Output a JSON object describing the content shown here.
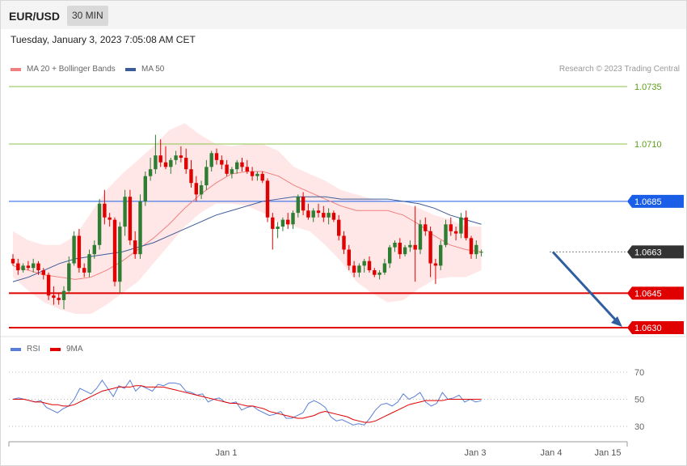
{
  "header": {
    "pair": "EUR/USD",
    "timeframe": "30 MIN"
  },
  "datetime": "Tuesday, January 3, 2023 7:05:08 AM CET",
  "legend": {
    "ma20": "MA 20 + Bollinger Bands",
    "ma50": "MA 50",
    "rsi": "RSI",
    "ma9": "9MA"
  },
  "credit": "Research © 2023 Trading Central",
  "colors": {
    "up": "#2e7d32",
    "down": "#e00000",
    "band": "#ffe3e3",
    "ma20": "#f08080",
    "ma50": "#3d5a99",
    "rsi": "#5b7fd6",
    "rsi_ma": "#e00000",
    "resistance": "#8bc34a",
    "pivot": "#1a5ee8",
    "support": "#e00000",
    "last": "#333333"
  },
  "levels": [
    {
      "label": "1.0735",
      "value": 1.0735,
      "kind": "resistance"
    },
    {
      "label": "1.0710",
      "value": 1.071,
      "kind": "resistance"
    },
    {
      "label": "1.0685",
      "value": 1.0685,
      "kind": "pivot"
    },
    {
      "label": "1.0663",
      "value": 1.0663,
      "kind": "last"
    },
    {
      "label": "1.0645",
      "value": 1.0645,
      "kind": "support"
    },
    {
      "label": "1.0630",
      "value": 1.063,
      "kind": "support"
    }
  ],
  "rsi_levels": [
    "70",
    "50",
    "30"
  ],
  "xaxis": [
    "Jan 1",
    "Jan 3",
    "Jan 4",
    "Jan 15"
  ],
  "chart_data": {
    "type": "candlestick",
    "interval": "30 MIN",
    "ylim": [
      1.0627,
      1.074
    ],
    "candles": [
      [
        1.066,
        1.0662,
        1.0657,
        1.0658
      ],
      [
        1.0658,
        1.066,
        1.0653,
        1.0655
      ],
      [
        1.0655,
        1.0658,
        1.0654,
        1.0657
      ],
      [
        1.0657,
        1.0659,
        1.0655,
        1.0656
      ],
      [
        1.0656,
        1.066,
        1.0654,
        1.0658
      ],
      [
        1.0658,
        1.0659,
        1.0653,
        1.0655
      ],
      [
        1.0655,
        1.0656,
        1.0651,
        1.0653
      ],
      [
        1.0653,
        1.0654,
        1.0642,
        1.0644
      ],
      [
        1.0644,
        1.0648,
        1.064,
        1.0643
      ],
      [
        1.0643,
        1.0645,
        1.064,
        1.0642
      ],
      [
        1.0642,
        1.0648,
        1.0638,
        1.0646
      ],
      [
        1.0646,
        1.0661,
        1.0645,
        1.0658
      ],
      [
        1.0658,
        1.0672,
        1.0657,
        1.067
      ],
      [
        1.067,
        1.0673,
        1.0654,
        1.0656
      ],
      [
        1.0656,
        1.0658,
        1.0652,
        1.0654
      ],
      [
        1.0654,
        1.0664,
        1.0652,
        1.0662
      ],
      [
        1.0662,
        1.0668,
        1.066,
        1.0666
      ],
      [
        1.0666,
        1.0686,
        1.0664,
        1.0684
      ],
      [
        1.0684,
        1.069,
        1.0675,
        1.0678
      ],
      [
        1.0678,
        1.068,
        1.0674,
        1.0677
      ],
      [
        1.0677,
        1.0678,
        1.0648,
        1.065
      ],
      [
        1.065,
        1.0676,
        1.0645,
        1.0674
      ],
      [
        1.0674,
        1.069,
        1.067,
        1.0687
      ],
      [
        1.0687,
        1.069,
        1.0666,
        1.0668
      ],
      [
        1.0668,
        1.0672,
        1.066,
        1.0662
      ],
      [
        1.0662,
        1.0688,
        1.066,
        1.0685
      ],
      [
        1.0685,
        1.0698,
        1.0683,
        1.0696
      ],
      [
        1.0696,
        1.0704,
        1.0694,
        1.0699
      ],
      [
        1.0699,
        1.0714,
        1.0697,
        1.0705
      ],
      [
        1.0705,
        1.0712,
        1.07,
        1.0702
      ],
      [
        1.0702,
        1.0709,
        1.0699,
        1.07
      ],
      [
        1.07,
        1.0704,
        1.0697,
        1.0703
      ],
      [
        1.0703,
        1.0707,
        1.0701,
        1.0705
      ],
      [
        1.0705,
        1.0709,
        1.0702,
        1.0704
      ],
      [
        1.0704,
        1.0708,
        1.0697,
        1.0699
      ],
      [
        1.0699,
        1.0703,
        1.0691,
        1.0693
      ],
      [
        1.0693,
        1.0696,
        1.0685,
        1.0688
      ],
      [
        1.0688,
        1.0694,
        1.0686,
        1.0692
      ],
      [
        1.0692,
        1.0703,
        1.069,
        1.07
      ],
      [
        1.07,
        1.0707,
        1.0698,
        1.0706
      ],
      [
        1.0706,
        1.0708,
        1.0701,
        1.0703
      ],
      [
        1.0703,
        1.0705,
        1.0699,
        1.0701
      ],
      [
        1.0701,
        1.0703,
        1.0696,
        1.0697
      ],
      [
        1.0697,
        1.07,
        1.0695,
        1.0699
      ],
      [
        1.0699,
        1.0703,
        1.0697,
        1.0702
      ],
      [
        1.0702,
        1.0704,
        1.0698,
        1.07
      ],
      [
        1.07,
        1.0703,
        1.0697,
        1.0698
      ],
      [
        1.0698,
        1.07,
        1.0694,
        1.0696
      ],
      [
        1.0696,
        1.0698,
        1.0694,
        1.0697
      ],
      [
        1.0697,
        1.0698,
        1.0693,
        1.0694
      ],
      [
        1.0694,
        1.0695,
        1.0676,
        1.0678
      ],
      [
        1.0678,
        1.068,
        1.0664,
        1.0673
      ],
      [
        1.0673,
        1.0676,
        1.0669,
        1.0674
      ],
      [
        1.0674,
        1.0678,
        1.0672,
        1.0677
      ],
      [
        1.0677,
        1.068,
        1.0673,
        1.0675
      ],
      [
        1.0675,
        1.0681,
        1.0673,
        1.068
      ],
      [
        1.068,
        1.0688,
        1.0678,
        1.0687
      ],
      [
        1.0687,
        1.0689,
        1.0679,
        1.0681
      ],
      [
        1.0681,
        1.0684,
        1.0677,
        1.0678
      ],
      [
        1.0678,
        1.0682,
        1.0676,
        1.0681
      ],
      [
        1.0681,
        1.0684,
        1.0678,
        1.068
      ],
      [
        1.068,
        1.0683,
        1.0676,
        1.0678
      ],
      [
        1.0678,
        1.0682,
        1.0675,
        1.068
      ],
      [
        1.068,
        1.0681,
        1.0676,
        1.0677
      ],
      [
        1.0677,
        1.0679,
        1.0668,
        1.067
      ],
      [
        1.067,
        1.0672,
        1.0662,
        1.0664
      ],
      [
        1.0664,
        1.0666,
        1.0655,
        1.0657
      ],
      [
        1.0657,
        1.0659,
        1.0652,
        1.0654
      ],
      [
        1.0654,
        1.0658,
        1.0652,
        1.0657
      ],
      [
        1.0657,
        1.066,
        1.0654,
        1.0659
      ],
      [
        1.0659,
        1.0661,
        1.0654,
        1.0655
      ],
      [
        1.0655,
        1.0656,
        1.0652,
        1.0653
      ],
      [
        1.0653,
        1.0655,
        1.0651,
        1.0654
      ],
      [
        1.0654,
        1.066,
        1.0653,
        1.0658
      ],
      [
        1.0658,
        1.0666,
        1.0656,
        1.0665
      ],
      [
        1.0665,
        1.0668,
        1.0663,
        1.0667
      ],
      [
        1.0667,
        1.0669,
        1.066,
        1.0662
      ],
      [
        1.0662,
        1.0666,
        1.0661,
        1.0665
      ],
      [
        1.0665,
        1.0668,
        1.0663,
        1.0666
      ],
      [
        1.0666,
        1.0683,
        1.065,
        1.0664
      ],
      [
        1.0664,
        1.0677,
        1.0662,
        1.0675
      ],
      [
        1.0675,
        1.0678,
        1.067,
        1.0672
      ],
      [
        1.0672,
        1.0674,
        1.0652,
        1.0658
      ],
      [
        1.0658,
        1.066,
        1.0649,
        1.0657
      ],
      [
        1.0657,
        1.0668,
        1.0655,
        1.0666
      ],
      [
        1.0666,
        1.0677,
        1.0665,
        1.0675
      ],
      [
        1.0675,
        1.0678,
        1.067,
        1.0672
      ],
      [
        1.0672,
        1.0674,
        1.0668,
        1.0671
      ],
      [
        1.0671,
        1.068,
        1.0669,
        1.0678
      ],
      [
        1.0678,
        1.0681,
        1.0668,
        1.0669
      ],
      [
        1.0669,
        1.067,
        1.066,
        1.0662
      ],
      [
        1.0662,
        1.0668,
        1.066,
        1.0666
      ],
      [
        1.0663,
        1.0664,
        1.0661,
        1.0663
      ]
    ],
    "ma20": [
      1.0657,
      1.0655,
      1.0653,
      1.0652,
      1.0651,
      1.0652,
      1.0655,
      1.0659,
      1.0664,
      1.0669,
      1.0675,
      1.0682,
      1.0688,
      1.0693,
      1.0697,
      1.0698,
      1.0698,
      1.0696,
      1.0692,
      1.0689,
      1.0686,
      1.0683,
      1.0681,
      1.0681,
      1.0681,
      1.0679,
      1.0675,
      1.067,
      1.0666,
      1.0664,
      1.0663
    ],
    "ma50": [
      1.065,
      1.0652,
      1.0655,
      1.0658,
      1.066,
      1.0661,
      1.0662,
      1.0663,
      1.0665,
      1.0667,
      1.067,
      1.0673,
      1.0676,
      1.0679,
      1.0681,
      1.0683,
      1.0685,
      1.0686,
      1.0687,
      1.0687,
      1.0687,
      1.0686,
      1.0686,
      1.0686,
      1.0686,
      1.0685,
      1.0684,
      1.0682,
      1.0679,
      1.0677,
      1.0675
    ],
    "bb_upper": [
      1.0672,
      1.0668,
      1.0666,
      1.0666,
      1.067,
      1.068,
      1.069,
      1.0697,
      1.0703,
      1.0709,
      1.0716,
      1.0719,
      1.0714,
      1.071,
      1.0709,
      1.071,
      1.071,
      1.0707,
      1.07,
      1.0697,
      1.0694,
      1.069,
      1.0688,
      1.0686,
      1.0685,
      1.0684,
      1.0682,
      1.0679,
      1.0677,
      1.0674,
      1.0674
    ],
    "bb_lower": [
      1.0652,
      1.0646,
      1.0641,
      1.0638,
      1.0636,
      1.0636,
      1.064,
      1.0645,
      1.065,
      1.0658,
      1.0666,
      1.0674,
      1.068,
      1.0684,
      1.0684,
      1.0683,
      1.068,
      1.0676,
      1.0674,
      1.0672,
      1.0666,
      1.0659,
      1.065,
      1.0645,
      1.0641,
      1.0642,
      1.0647,
      1.0651,
      1.0652,
      1.0652,
      1.0655
    ],
    "rsi": [
      50,
      51,
      50,
      49,
      48,
      49,
      44,
      42,
      40,
      43,
      45,
      50,
      58,
      56,
      54,
      58,
      64,
      58,
      52,
      60,
      58,
      64,
      56,
      60,
      58,
      56,
      61,
      60,
      62,
      62,
      61,
      56,
      55,
      53,
      54,
      48,
      50,
      51,
      48,
      47,
      48,
      42,
      44,
      45,
      42,
      40,
      38,
      39,
      41,
      36,
      36,
      38,
      40,
      47,
      49,
      47,
      44,
      37,
      34,
      35,
      33,
      31,
      32,
      31,
      36,
      42,
      46,
      47,
      45,
      48,
      54,
      50,
      52,
      55,
      48,
      45,
      47,
      55,
      50,
      51,
      53,
      48,
      50,
      48,
      49
    ],
    "rsi_ma9": [
      50,
      50,
      50,
      49,
      48,
      48,
      47,
      46,
      46,
      45,
      45,
      46,
      48,
      50,
      52,
      54,
      56,
      57,
      58,
      59,
      59,
      59,
      60,
      60,
      59,
      59,
      59,
      59,
      58,
      57,
      56,
      55,
      54,
      53,
      52,
      51,
      50,
      49,
      48,
      47,
      47,
      46,
      45,
      45,
      44,
      43,
      41,
      40,
      39,
      38,
      37,
      36,
      36,
      37,
      38,
      40,
      41,
      40,
      39,
      38,
      37,
      35,
      34,
      33,
      33,
      34,
      36,
      38,
      40,
      42,
      44,
      46,
      47,
      48,
      49,
      49,
      49,
      49,
      50,
      50,
      50,
      50,
      50,
      50,
      50
    ],
    "rsi_ylim": [
      20,
      80
    ],
    "arrow": {
      "from": 1.0663,
      "to": 1.063
    }
  }
}
